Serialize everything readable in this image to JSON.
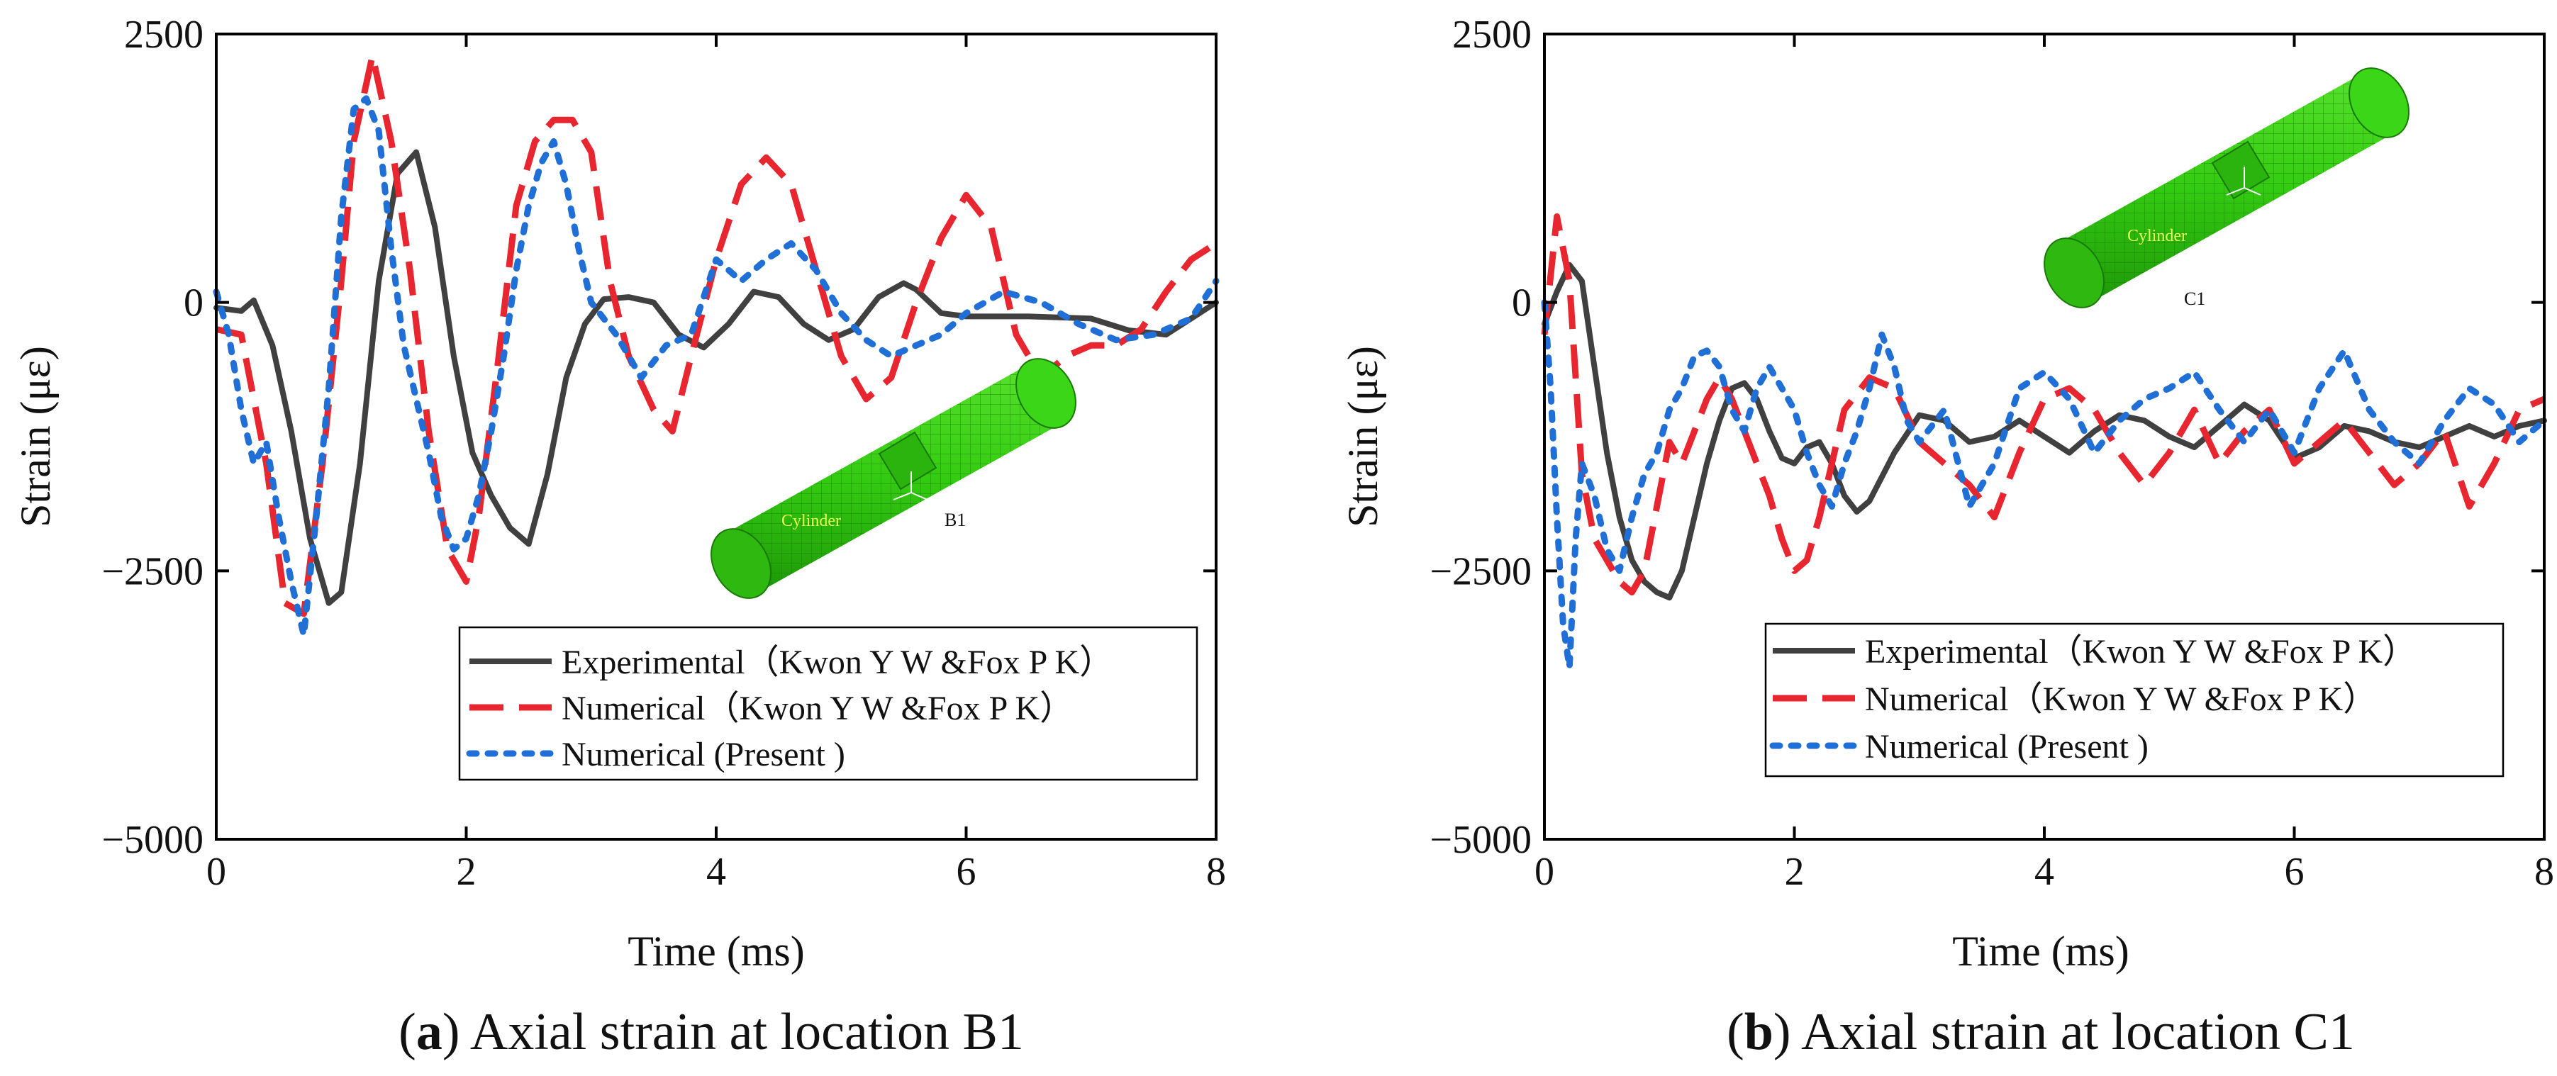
{
  "colors": {
    "experimental": "#404040",
    "numerical_ref": "#e8262f",
    "numerical_present": "#1f6fd6",
    "cylinder": "#33cc11",
    "cylinder_dark": "#1e8f05"
  },
  "legend": {
    "experimental": "Experimental（Kwon Y W &Fox P K）",
    "numerical_ref": "Numerical（Kwon Y W &Fox P K）",
    "numerical_present": "Numerical (Present )"
  },
  "chart_data": [
    {
      "id": "a",
      "type": "line",
      "caption_bold": "a",
      "caption": "Axial strain at location B1",
      "xlabel": "Time (ms)",
      "ylabel": "Strain (με)",
      "xlim": [
        0,
        8
      ],
      "ylim": [
        -5000,
        2500
      ],
      "xticks": [
        0,
        2,
        4,
        6,
        8
      ],
      "yticks": [
        2500,
        0,
        -2500,
        -5000
      ],
      "ytick_labels": [
        "2500",
        "0",
        "−2500",
        "−5000"
      ],
      "inset": {
        "label": "Cylinder",
        "point": "B1"
      },
      "series": [
        {
          "name": "experimental",
          "x": [
            0,
            0.2,
            0.3,
            0.45,
            0.6,
            0.75,
            0.9,
            1.0,
            1.15,
            1.3,
            1.45,
            1.6,
            1.75,
            1.9,
            2.05,
            2.2,
            2.35,
            2.5,
            2.65,
            2.8,
            2.95,
            3.1,
            3.3,
            3.5,
            3.7,
            3.9,
            4.1,
            4.3,
            4.5,
            4.7,
            4.9,
            5.1,
            5.3,
            5.5,
            5.6,
            5.8,
            6.0,
            6.5,
            7.0,
            7.3,
            7.6,
            7.8,
            8.0
          ],
          "y": [
            -50,
            -80,
            20,
            -400,
            -1200,
            -2200,
            -2800,
            -2700,
            -1500,
            200,
            1200,
            1400,
            700,
            -500,
            -1400,
            -1800,
            -2100,
            -2250,
            -1600,
            -700,
            -200,
            30,
            50,
            0,
            -300,
            -420,
            -200,
            100,
            50,
            -200,
            -350,
            -250,
            50,
            180,
            120,
            -100,
            -130,
            -130,
            -150,
            -260,
            -300,
            -150,
            0
          ]
        },
        {
          "name": "numerical_ref",
          "x": [
            0,
            0.2,
            0.4,
            0.55,
            0.7,
            0.85,
            1.0,
            1.1,
            1.25,
            1.4,
            1.55,
            1.7,
            1.85,
            2.0,
            2.1,
            2.25,
            2.4,
            2.55,
            2.7,
            2.85,
            3.0,
            3.15,
            3.3,
            3.5,
            3.65,
            3.8,
            4.0,
            4.2,
            4.4,
            4.6,
            4.8,
            5.0,
            5.2,
            5.4,
            5.6,
            5.8,
            6.0,
            6.2,
            6.4,
            6.6,
            6.8,
            7.0,
            7.2,
            7.4,
            7.6,
            7.8,
            8.0
          ],
          "y": [
            -250,
            -300,
            -1500,
            -2800,
            -2900,
            -1500,
            200,
            1500,
            2300,
            1500,
            300,
            -1200,
            -2300,
            -2600,
            -2000,
            -600,
            900,
            1500,
            1700,
            1700,
            1400,
            200,
            -500,
            -1000,
            -1200,
            -500,
            400,
            1100,
            1350,
            1100,
            300,
            -500,
            -900,
            -700,
            0,
            600,
            1000,
            700,
            -300,
            -700,
            -500,
            -400,
            -400,
            -250,
            100,
            400,
            550
          ]
        },
        {
          "name": "numerical_present",
          "x": [
            0,
            0.1,
            0.2,
            0.3,
            0.4,
            0.5,
            0.6,
            0.7,
            0.8,
            0.9,
            1.0,
            1.1,
            1.2,
            1.3,
            1.4,
            1.5,
            1.6,
            1.7,
            1.8,
            1.9,
            2.0,
            2.1,
            2.2,
            2.3,
            2.4,
            2.5,
            2.6,
            2.7,
            2.8,
            2.9,
            3.0,
            3.2,
            3.4,
            3.6,
            3.8,
            4.0,
            4.2,
            4.4,
            4.6,
            4.8,
            5.0,
            5.2,
            5.4,
            5.6,
            5.8,
            6.0,
            6.3,
            6.6,
            6.9,
            7.2,
            7.5,
            7.8,
            8.0
          ],
          "y": [
            100,
            -300,
            -1000,
            -1500,
            -1300,
            -2000,
            -2600,
            -3100,
            -2000,
            -800,
            800,
            1800,
            1900,
            1600,
            500,
            -400,
            -900,
            -1400,
            -2000,
            -2300,
            -2200,
            -1800,
            -1200,
            -500,
            300,
            900,
            1300,
            1500,
            1100,
            500,
            0,
            -300,
            -700,
            -400,
            -300,
            400,
            200,
            400,
            550,
            300,
            -100,
            -350,
            -500,
            -400,
            -300,
            -100,
            100,
            0,
            -200,
            -350,
            -300,
            -150,
            200
          ]
        }
      ]
    },
    {
      "id": "b",
      "type": "line",
      "caption_bold": "b",
      "caption": "Axial strain at location C1",
      "xlabel": "Time (ms)",
      "ylabel": "Strain (με)",
      "xlim": [
        0,
        8
      ],
      "ylim": [
        -5000,
        2500
      ],
      "xticks": [
        0,
        2,
        4,
        6,
        8
      ],
      "yticks": [
        2500,
        0,
        -2500,
        -5000
      ],
      "ytick_labels": [
        "2500",
        "0",
        "−2500",
        "−5000"
      ],
      "inset": {
        "label": "Cylinder",
        "point": "C1"
      },
      "series": [
        {
          "name": "experimental",
          "x": [
            0,
            0.1,
            0.2,
            0.3,
            0.4,
            0.5,
            0.6,
            0.7,
            0.8,
            0.9,
            1.0,
            1.1,
            1.2,
            1.3,
            1.4,
            1.5,
            1.6,
            1.7,
            1.8,
            1.9,
            2.0,
            2.1,
            2.2,
            2.3,
            2.4,
            2.5,
            2.6,
            2.8,
            3.0,
            3.2,
            3.4,
            3.6,
            3.8,
            4.0,
            4.2,
            4.4,
            4.6,
            4.8,
            5.0,
            5.2,
            5.4,
            5.6,
            5.8,
            6.0,
            6.2,
            6.4,
            6.6,
            6.8,
            7.0,
            7.2,
            7.4,
            7.6,
            7.8,
            8.0
          ],
          "y": [
            -200,
            100,
            350,
            200,
            -600,
            -1400,
            -2000,
            -2400,
            -2600,
            -2700,
            -2750,
            -2500,
            -2000,
            -1500,
            -1100,
            -800,
            -750,
            -900,
            -1200,
            -1450,
            -1500,
            -1350,
            -1300,
            -1500,
            -1800,
            -1950,
            -1850,
            -1400,
            -1050,
            -1100,
            -1300,
            -1250,
            -1100,
            -1250,
            -1400,
            -1200,
            -1050,
            -1100,
            -1250,
            -1350,
            -1150,
            -950,
            -1100,
            -1450,
            -1350,
            -1150,
            -1200,
            -1300,
            -1350,
            -1250,
            -1150,
            -1250,
            -1150,
            -1100
          ]
        },
        {
          "name": "numerical_ref",
          "x": [
            0,
            0.1,
            0.2,
            0.3,
            0.4,
            0.5,
            0.6,
            0.7,
            0.8,
            0.9,
            1.0,
            1.1,
            1.2,
            1.3,
            1.4,
            1.5,
            1.6,
            1.7,
            1.8,
            1.9,
            2.0,
            2.1,
            2.2,
            2.3,
            2.4,
            2.6,
            2.8,
            3.0,
            3.2,
            3.4,
            3.6,
            3.8,
            4.0,
            4.2,
            4.4,
            4.6,
            4.8,
            5.0,
            5.2,
            5.4,
            5.6,
            5.8,
            6.0,
            6.2,
            6.4,
            6.6,
            6.8,
            7.0,
            7.2,
            7.4,
            7.6,
            7.8,
            8.0
          ],
          "y": [
            -300,
            800,
            200,
            -1600,
            -2200,
            -2400,
            -2600,
            -2700,
            -2500,
            -1900,
            -1300,
            -1500,
            -1200,
            -900,
            -700,
            -900,
            -1200,
            -1500,
            -1800,
            -2200,
            -2500,
            -2400,
            -2000,
            -1500,
            -1000,
            -700,
            -800,
            -1300,
            -1500,
            -1700,
            -2000,
            -1400,
            -900,
            -800,
            -1000,
            -1400,
            -1700,
            -1400,
            -1000,
            -1500,
            -1200,
            -1000,
            -1500,
            -1300,
            -1100,
            -1400,
            -1700,
            -1500,
            -1200,
            -1900,
            -1500,
            -1000,
            -900
          ]
        },
        {
          "name": "numerical_present",
          "x": [
            0,
            0.05,
            0.1,
            0.15,
            0.2,
            0.25,
            0.3,
            0.4,
            0.5,
            0.6,
            0.7,
            0.8,
            0.9,
            1.0,
            1.1,
            1.2,
            1.3,
            1.4,
            1.5,
            1.6,
            1.7,
            1.8,
            1.9,
            2.0,
            2.1,
            2.2,
            2.3,
            2.4,
            2.5,
            2.6,
            2.7,
            2.8,
            2.9,
            3.0,
            3.2,
            3.4,
            3.6,
            3.8,
            4.0,
            4.2,
            4.4,
            4.6,
            4.8,
            5.0,
            5.2,
            5.4,
            5.6,
            5.8,
            6.0,
            6.2,
            6.4,
            6.6,
            6.8,
            7.0,
            7.2,
            7.4,
            7.6,
            7.8,
            8.0
          ],
          "y": [
            0,
            -800,
            -2000,
            -3000,
            -3400,
            -2200,
            -1500,
            -1800,
            -2300,
            -2500,
            -2000,
            -1600,
            -1400,
            -1000,
            -800,
            -500,
            -450,
            -600,
            -1000,
            -1200,
            -800,
            -600,
            -800,
            -1000,
            -1400,
            -1700,
            -1900,
            -1500,
            -1200,
            -800,
            -300,
            -600,
            -1100,
            -1300,
            -1000,
            -1900,
            -1500,
            -800,
            -650,
            -900,
            -1400,
            -1100,
            -900,
            -800,
            -650,
            -1000,
            -1300,
            -1000,
            -1400,
            -800,
            -450,
            -1000,
            -1300,
            -1500,
            -1100,
            -800,
            -950,
            -1300,
            -1100
          ]
        }
      ]
    }
  ]
}
